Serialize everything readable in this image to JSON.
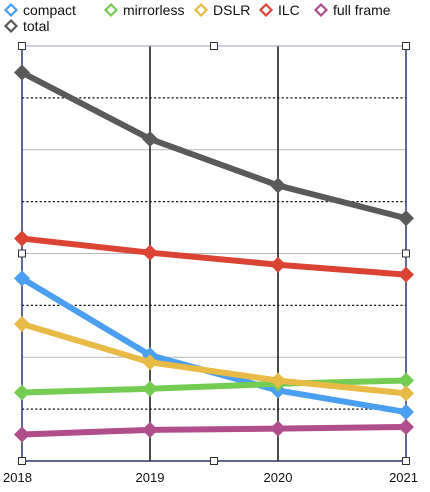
{
  "chart_data": {
    "type": "line",
    "title": "",
    "xlabel": "",
    "ylabel": "",
    "x": [
      "2018",
      "2019",
      "2020",
      "2021"
    ],
    "ylim": [
      0,
      100
    ],
    "grid": true,
    "legend_position": "top-left",
    "series": [
      {
        "name": "compact",
        "color": "#4a9ff0",
        "values": [
          44.0,
          25.5,
          17.0,
          11.8
        ]
      },
      {
        "name": "mirrorless",
        "color": "#74cc53",
        "values": [
          16.5,
          17.4,
          18.6,
          19.4
        ]
      },
      {
        "name": "DSLR",
        "color": "#e8bb46",
        "values": [
          33.0,
          23.8,
          19.4,
          16.3
        ]
      },
      {
        "name": "ILC",
        "color": "#db4434",
        "values": [
          53.6,
          50.2,
          47.3,
          44.9
        ]
      },
      {
        "name": "full frame",
        "color": "#b04d8b",
        "values": [
          6.4,
          7.5,
          7.8,
          8.2
        ]
      },
      {
        "name": "total",
        "color": "#5a5a5a",
        "values": [
          93.6,
          77.6,
          66.4,
          58.5
        ]
      }
    ]
  }
}
